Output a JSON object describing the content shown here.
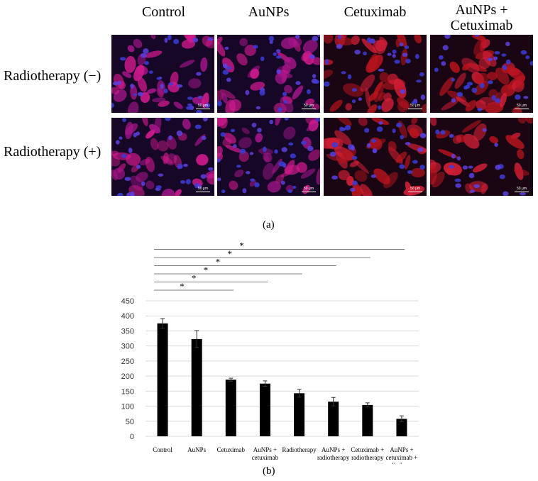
{
  "panel_a": {
    "label": "(a)",
    "columns": [
      "Control",
      "AuNPs",
      "Cetuximab",
      "AuNPs +\nCetuximab"
    ],
    "rows": [
      "Radiotherapy (−)",
      "Radiotherapy (+)"
    ],
    "scale_bar": "50 μm"
  },
  "panel_b": {
    "label": "(b)"
  },
  "chart_data": {
    "type": "bar",
    "title": "",
    "xlabel": "",
    "ylabel": "",
    "categories": [
      "Control",
      "AuNPs",
      "Cetuximab",
      "AuNPs + cetuximab",
      "Radiotherapy",
      "AuNPs + radiotherapy",
      "Cetuximab + radiotherapy",
      "AuNPs + cetuximab + radiotherapy"
    ],
    "category_lines": [
      [
        "Control"
      ],
      [
        "AuNPs"
      ],
      [
        "Cetuximab"
      ],
      [
        "AuNPs +",
        "cetuximab"
      ],
      [
        "Radiotherapy"
      ],
      [
        "AuNPs +",
        "radiotherapy"
      ],
      [
        "Cetuximab +",
        "radiotherapy"
      ],
      [
        "AuNPs +",
        "cetuximab +",
        "radiotherapy"
      ]
    ],
    "values": [
      375,
      323,
      188,
      175,
      143,
      115,
      104,
      58
    ],
    "errors": [
      16,
      28,
      5,
      9,
      13,
      14,
      7,
      10
    ],
    "ylim": [
      0,
      450
    ],
    "yticks": [
      0,
      50,
      100,
      150,
      200,
      250,
      300,
      350,
      400,
      450
    ],
    "grid": true,
    "bar_color": "#000000",
    "significance": [
      {
        "from": 0,
        "to": 2,
        "label": "*"
      },
      {
        "from": 0,
        "to": 3,
        "label": "*"
      },
      {
        "from": 0,
        "to": 4,
        "label": "*"
      },
      {
        "from": 0,
        "to": 5,
        "label": "*"
      },
      {
        "from": 0,
        "to": 6,
        "label": "*"
      },
      {
        "from": 0,
        "to": 7,
        "label": "*"
      }
    ]
  }
}
